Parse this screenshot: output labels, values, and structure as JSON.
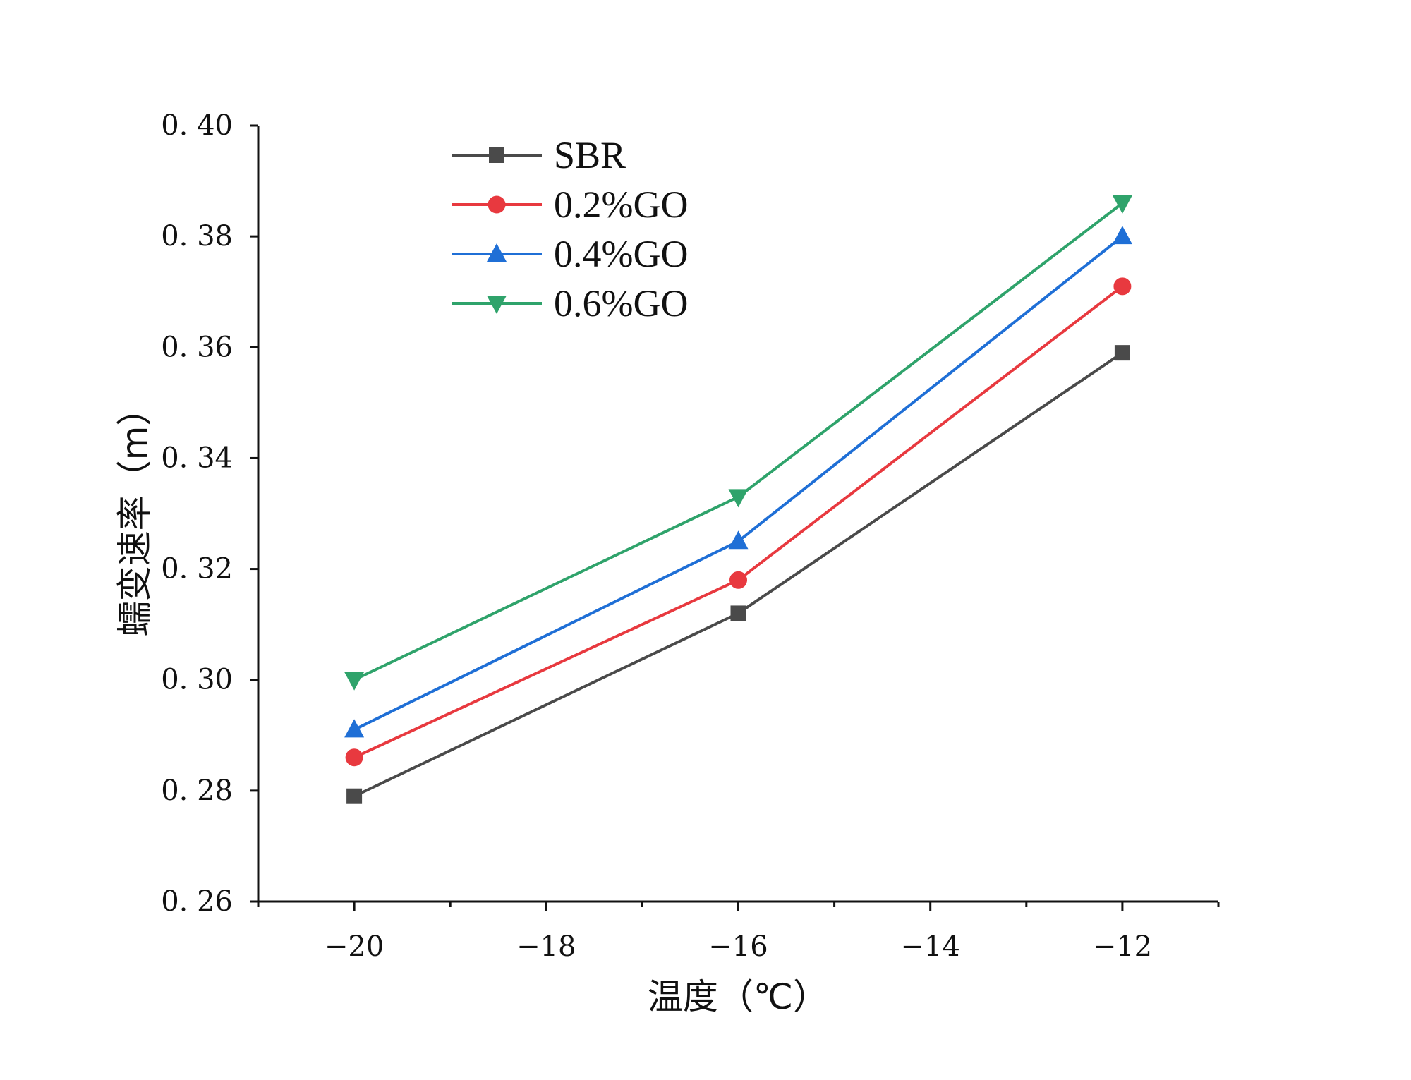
{
  "chart_data": {
    "type": "line",
    "title": "",
    "xlabel": "温度（℃）",
    "ylabel": "蠕变速率（m）",
    "xlim": [
      -21,
      -11
    ],
    "ylim": [
      0.26,
      0.4
    ],
    "x": [
      -20,
      -16,
      -12
    ],
    "xticks": [
      -20,
      -18,
      -16,
      -14,
      -12
    ],
    "xtick_labels": [
      "−20",
      "−18",
      "−16",
      "−14",
      "−12"
    ],
    "yticks": [
      0.26,
      0.28,
      0.3,
      0.32,
      0.34,
      0.36,
      0.38,
      0.4
    ],
    "ytick_labels": [
      "0. 26",
      "0. 28",
      "0. 30",
      "0. 32",
      "0. 34",
      "0. 36",
      "0. 38",
      "0. 40"
    ],
    "grid": false,
    "legend_position": "top-left",
    "series": [
      {
        "name": "SBR",
        "values": [
          0.279,
          0.312,
          0.359
        ],
        "color": "#4a4a4a",
        "marker": "square"
      },
      {
        "name": "0.2%GO",
        "values": [
          0.286,
          0.318,
          0.371
        ],
        "color": "#e8393f",
        "marker": "circle"
      },
      {
        "name": "0.4%GO",
        "values": [
          0.291,
          0.325,
          0.38
        ],
        "color": "#1f6fd6",
        "marker": "triangle-up"
      },
      {
        "name": "0.6%GO",
        "values": [
          0.3,
          0.333,
          0.386
        ],
        "color": "#2fa36b",
        "marker": "triangle-down"
      }
    ]
  }
}
